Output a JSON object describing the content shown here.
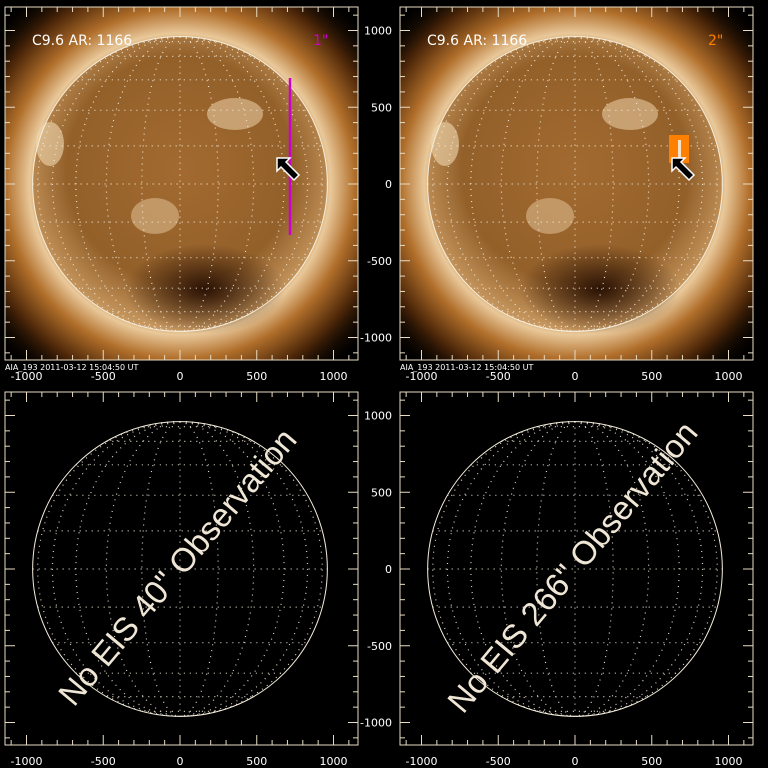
{
  "colors": {
    "frame": "#e8dcc4",
    "slit_1": "#cc00cc",
    "slit_2": "#ff7f00",
    "grid": "#f5eedd"
  },
  "panels": [
    {
      "id": "top-left",
      "type": "image",
      "title": "C9.6 AR: 1166",
      "tag": "1\"",
      "tag_color": "#cc00cc",
      "footer": "AIA_193   2011-03-12 15:04:50 UT",
      "marker": "slit-line",
      "arrow": true
    },
    {
      "id": "top-right",
      "type": "image",
      "title": "C9.6 AR: 1166",
      "tag": "2\"",
      "tag_color": "#ff7f00",
      "footer": "AIA_193   2011-03-12 15:04:50 UT",
      "marker": "raster-box",
      "arrow": true
    },
    {
      "id": "bottom-left",
      "type": "empty",
      "message": "No EIS 40\" Observation"
    },
    {
      "id": "bottom-right",
      "type": "empty",
      "message": "No EIS 266\" Observation"
    }
  ],
  "axes": {
    "x_ticks": [
      "-1000",
      "-500",
      "0",
      "500",
      "1000"
    ],
    "y_ticks": [
      "1000",
      "500",
      "0",
      "-500",
      "-1000"
    ]
  }
}
